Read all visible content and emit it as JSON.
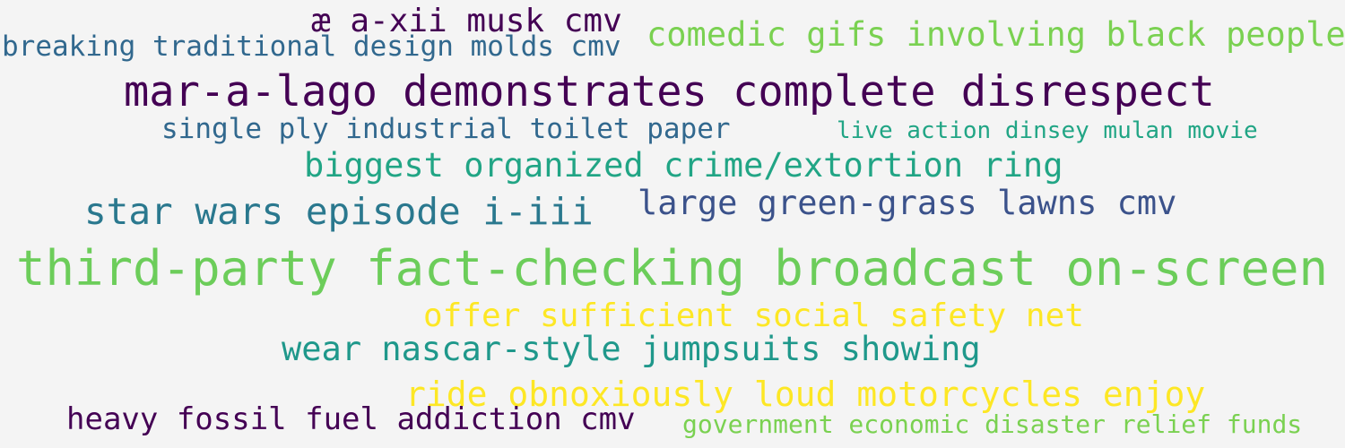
{
  "phrases": [
    {
      "text": "æ a-xii musk cmv",
      "color": "#440154"
    },
    {
      "text": "breaking traditional design molds cmv",
      "color": "#31688e"
    },
    {
      "text": "comedic gifs involving black people",
      "color": "#7ad151"
    },
    {
      "text": "mar-a-lago demonstrates complete disrespect",
      "color": "#440154"
    },
    {
      "text": "single ply industrial toilet paper",
      "color": "#31688e"
    },
    {
      "text": "live action dinsey mulan movie",
      "color": "#21a585"
    },
    {
      "text": "biggest organized crime/extortion ring",
      "color": "#21a585"
    },
    {
      "text": "star wars episode i-iii",
      "color": "#2a788e"
    },
    {
      "text": "large green-grass lawns cmv",
      "color": "#3b528b"
    },
    {
      "text": "third-party fact-checking broadcast on-screen",
      "color": "#6ccd5a"
    },
    {
      "text": "offer sufficient social safety net",
      "color": "#fde725"
    },
    {
      "text": "wear nascar-style jumpsuits showing",
      "color": "#1f988b"
    },
    {
      "text": "ride obnoxiously loud motorcycles enjoy",
      "color": "#fde725"
    },
    {
      "text": "heavy fossil fuel addiction cmv",
      "color": "#440154"
    },
    {
      "text": "government economic disaster relief funds",
      "color": "#7ad151"
    }
  ]
}
